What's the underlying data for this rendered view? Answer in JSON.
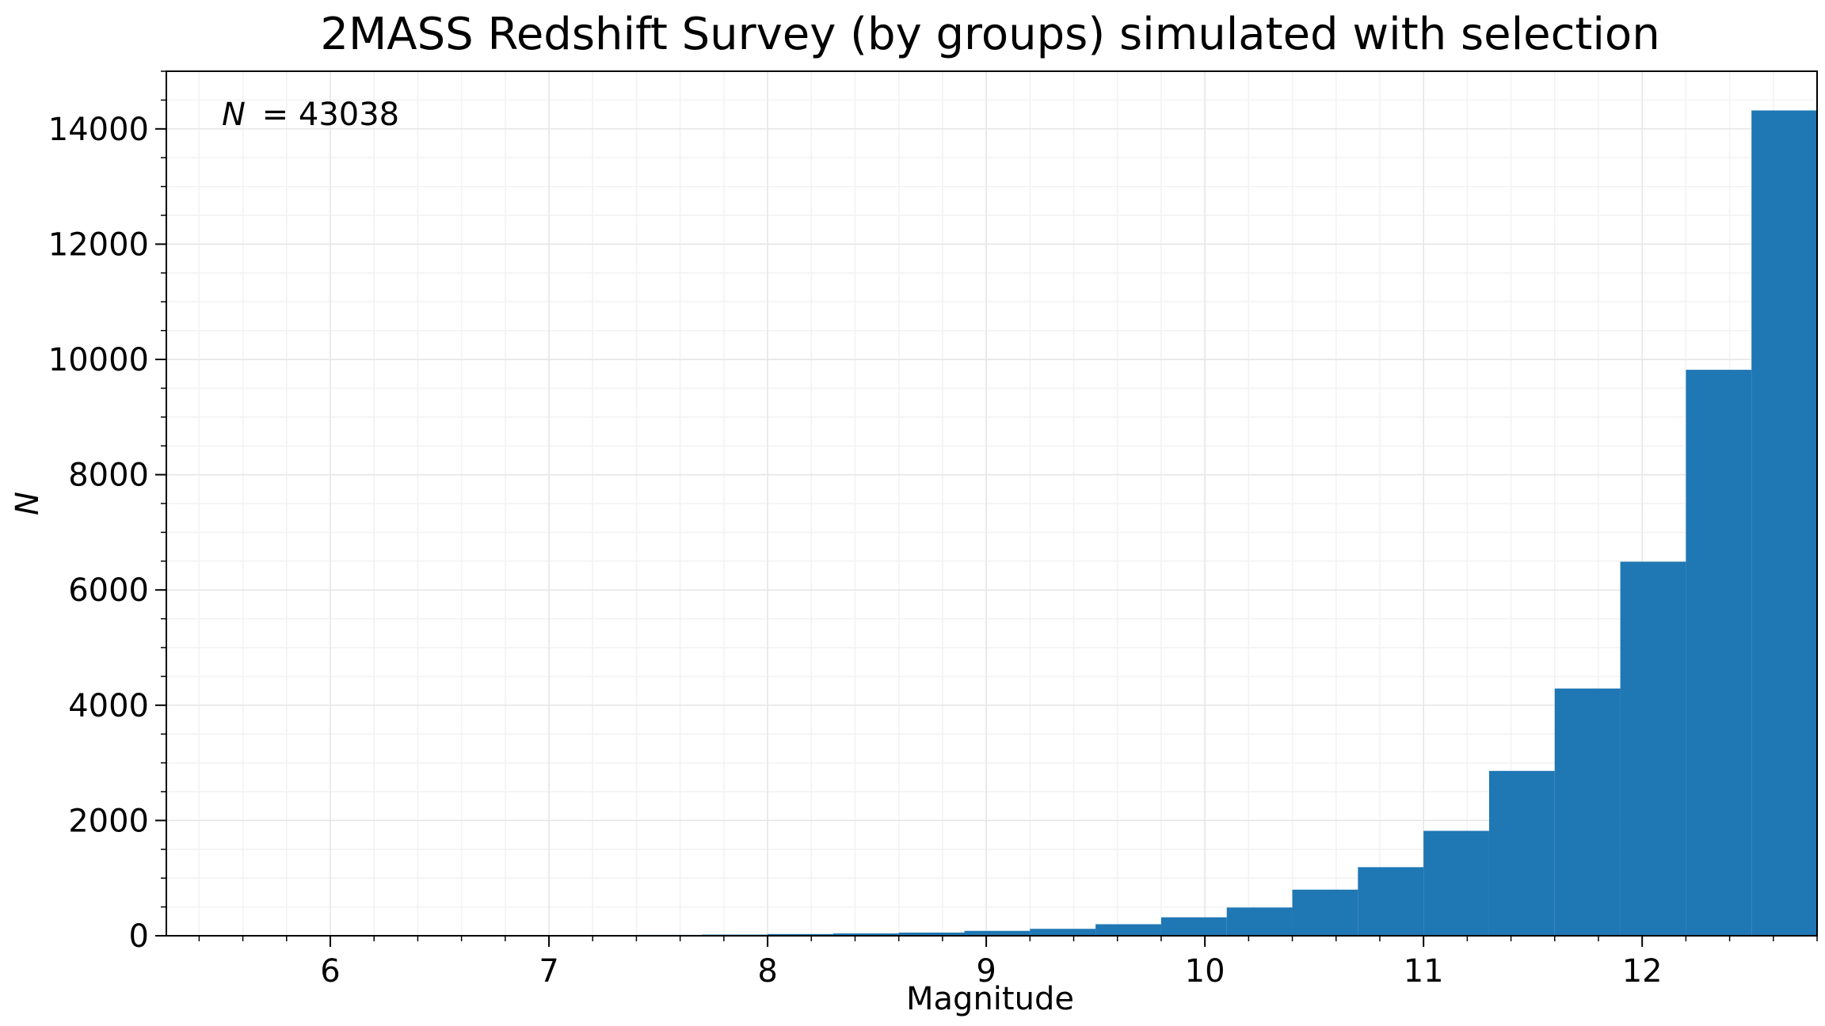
{
  "chart_data": {
    "type": "bar",
    "title": "2MASS Redshift Survey (by groups) simulated with selection",
    "xlabel": "Magnitude",
    "ylabel": "N",
    "annotation": {
      "lhs": "N",
      "rhs": "= 43038",
      "position": "top-left"
    },
    "xlim": [
      5.25,
      12.8
    ],
    "ylim": [
      0,
      15000
    ],
    "xticks": [
      6,
      7,
      8,
      9,
      10,
      11,
      12
    ],
    "yticks": [
      0,
      2000,
      4000,
      6000,
      8000,
      10000,
      12000,
      14000
    ],
    "grid": true,
    "color": "#1f77b4",
    "bins": [
      {
        "x0": 5.3,
        "x1": 5.6,
        "value": 1
      },
      {
        "x0": 5.6,
        "x1": 5.9,
        "value": 1
      },
      {
        "x0": 5.9,
        "x1": 6.2,
        "value": 2
      },
      {
        "x0": 6.2,
        "x1": 6.5,
        "value": 3
      },
      {
        "x0": 6.5,
        "x1": 6.8,
        "value": 4
      },
      {
        "x0": 6.8,
        "x1": 7.1,
        "value": 5
      },
      {
        "x0": 7.1,
        "x1": 7.4,
        "value": 8
      },
      {
        "x0": 7.4,
        "x1": 7.7,
        "value": 15
      },
      {
        "x0": 7.7,
        "x1": 8.0,
        "value": 20
      },
      {
        "x0": 8.0,
        "x1": 8.3,
        "value": 30
      },
      {
        "x0": 8.3,
        "x1": 8.6,
        "value": 40
      },
      {
        "x0": 8.6,
        "x1": 8.9,
        "value": 55
      },
      {
        "x0": 8.9,
        "x1": 9.2,
        "value": 85
      },
      {
        "x0": 9.2,
        "x1": 9.5,
        "value": 120
      },
      {
        "x0": 9.5,
        "x1": 9.8,
        "value": 200
      },
      {
        "x0": 9.8,
        "x1": 10.1,
        "value": 320
      },
      {
        "x0": 10.1,
        "x1": 10.4,
        "value": 490
      },
      {
        "x0": 10.4,
        "x1": 10.7,
        "value": 800
      },
      {
        "x0": 10.7,
        "x1": 11.0,
        "value": 1190
      },
      {
        "x0": 11.0,
        "x1": 11.3,
        "value": 1820
      },
      {
        "x0": 11.3,
        "x1": 11.6,
        "value": 2860
      },
      {
        "x0": 11.6,
        "x1": 11.9,
        "value": 4290
      },
      {
        "x0": 11.9,
        "x1": 12.2,
        "value": 6490
      },
      {
        "x0": 12.2,
        "x1": 12.5,
        "value": 9820
      },
      {
        "x0": 12.5,
        "x1": 12.8,
        "value": 14320
      }
    ]
  }
}
